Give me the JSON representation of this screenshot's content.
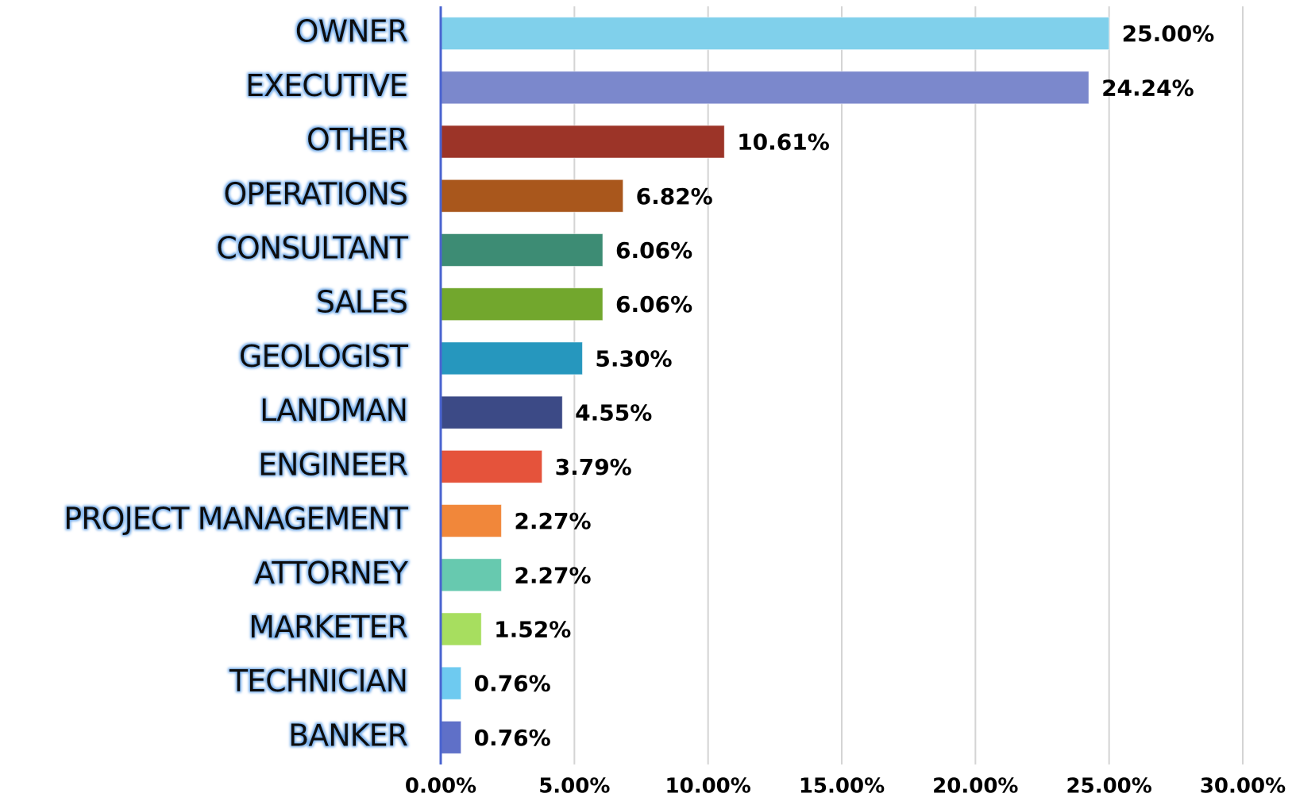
{
  "chart_data": {
    "type": "bar",
    "orientation": "horizontal",
    "categories": [
      "OWNER",
      "EXECUTIVE",
      "OTHER",
      "OPERATIONS",
      "CONSULTANT",
      "SALES",
      "GEOLOGIST",
      "LANDMAN",
      "ENGINEER",
      "PROJECT MANAGEMENT",
      "ATTORNEY",
      "MARKETER",
      "TECHNICIAN",
      "BANKER"
    ],
    "values": [
      25.0,
      24.24,
      10.61,
      6.82,
      6.06,
      6.06,
      5.3,
      4.55,
      3.79,
      2.27,
      2.27,
      1.52,
      0.76,
      0.76
    ],
    "value_labels": [
      "25.00%",
      "24.24%",
      "10.61%",
      "6.82%",
      "6.06%",
      "6.06%",
      "5.30%",
      "4.55%",
      "3.79%",
      "2.27%",
      "2.27%",
      "1.52%",
      "0.76%",
      "0.76%"
    ],
    "colors": [
      "#80d0eb",
      "#7b88cc",
      "#9c3428",
      "#a9571c",
      "#3d8c74",
      "#72a72d",
      "#2697be",
      "#3c4a86",
      "#e5533b",
      "#f1873a",
      "#67c9af",
      "#a7de5f",
      "#6ecaf0",
      "#5f70c8"
    ],
    "xlim": [
      0,
      30
    ],
    "xticks": [
      {
        "value": 0,
        "label": "0.00%"
      },
      {
        "value": 5,
        "label": "5.00%"
      },
      {
        "value": 10,
        "label": "10.00%"
      },
      {
        "value": 15,
        "label": "15.00%"
      },
      {
        "value": 20,
        "label": "20.00%"
      },
      {
        "value": 25,
        "label": "25.00%"
      },
      {
        "value": 30,
        "label": "30.00%"
      }
    ],
    "grid": true
  }
}
